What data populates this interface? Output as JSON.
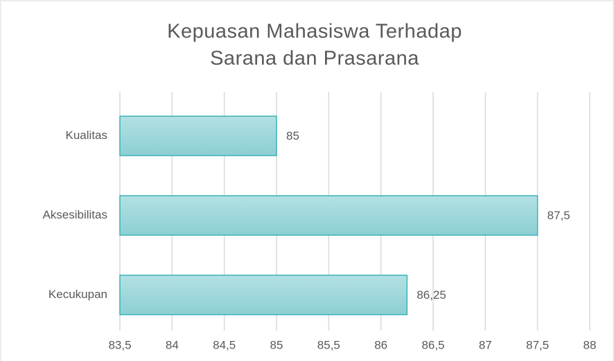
{
  "chart_data": {
    "type": "bar",
    "orientation": "horizontal",
    "title": [
      "Kepuasan Mahasiswa Terhadap",
      "Sarana dan Prasarana"
    ],
    "categories": [
      "Kualitas",
      "Aksesibilitas",
      "Kecukupan"
    ],
    "values": [
      85,
      87.5,
      86.25
    ],
    "value_labels": [
      "85",
      "87,5",
      "86,25"
    ],
    "color": "#9fd8dc",
    "xlim": [
      83.5,
      88
    ],
    "xticks": [
      {
        "value": 83.5,
        "label": "83,5"
      },
      84,
      {
        "value": 84.5,
        "label": "84,5"
      },
      85,
      {
        "value": 85.5,
        "label": "85,5"
      },
      86,
      {
        "value": 86.5,
        "label": "86,5"
      },
      87,
      {
        "value": 87.5,
        "label": "87,5"
      },
      88
    ],
    "grid": true
  }
}
